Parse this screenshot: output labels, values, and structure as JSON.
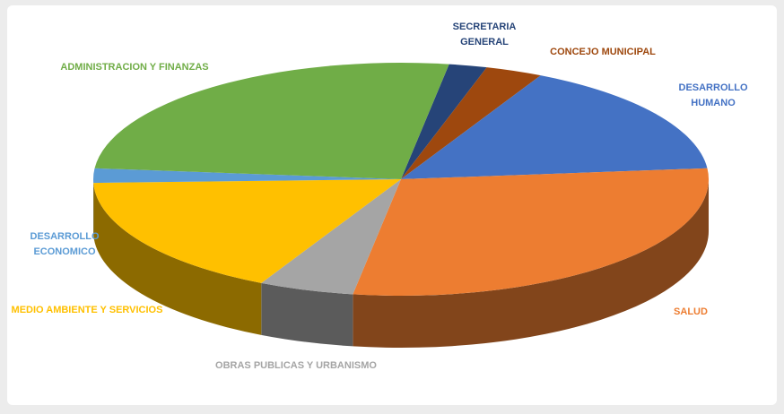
{
  "chart_data": {
    "type": "pie3d",
    "categories": [
      "SECRETARIA GENERAL",
      "CONCEJO MUNICIPAL",
      "DESARROLLO HUMANO",
      "SALUD",
      "OBRAS PUBLICAS Y URBANISMO",
      "MEDIO AMBIENTE Y SERVICIOS",
      "DESARROLLO ECONOMICO",
      "ADMINISTRACION Y FINANZAS"
    ],
    "values": [
      2,
      3,
      16,
      29,
      5,
      17,
      2,
      26
    ],
    "colors": [
      "#264478",
      "#9e480e",
      "#4472c4",
      "#ed7d31",
      "#a5a5a5",
      "#ffc000",
      "#5b9bd5",
      "#70ad47"
    ]
  }
}
